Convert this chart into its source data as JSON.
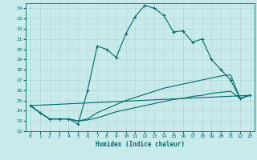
{
  "xlabel": "Humidex (Indice chaleur)",
  "bg_color": "#c8eaea",
  "grid_color": "#b0d8d8",
  "line_color": "#006868",
  "xlim": [
    -0.5,
    23.5
  ],
  "ylim": [
    22.0,
    34.5
  ],
  "yticks": [
    22,
    23,
    24,
    25,
    26,
    27,
    28,
    29,
    30,
    31,
    32,
    33,
    34
  ],
  "xticks": [
    0,
    1,
    2,
    3,
    4,
    5,
    6,
    7,
    8,
    9,
    10,
    11,
    12,
    13,
    14,
    15,
    16,
    17,
    18,
    19,
    20,
    21,
    22,
    23
  ],
  "series1": [
    [
      0,
      24.5
    ],
    [
      1,
      23.8
    ],
    [
      2,
      23.2
    ],
    [
      3,
      23.2
    ],
    [
      4,
      23.2
    ],
    [
      5,
      22.7
    ],
    [
      6,
      26.0
    ],
    [
      7,
      30.3
    ],
    [
      8,
      30.0
    ],
    [
      9,
      29.2
    ],
    [
      10,
      31.5
    ],
    [
      11,
      33.2
    ],
    [
      12,
      34.3
    ],
    [
      13,
      34.0
    ],
    [
      14,
      33.3
    ],
    [
      15,
      31.7
    ],
    [
      16,
      31.8
    ],
    [
      17,
      30.7
    ],
    [
      18,
      31.0
    ],
    [
      19,
      29.0
    ],
    [
      20,
      28.0
    ],
    [
      21,
      27.0
    ],
    [
      22,
      25.2
    ],
    [
      23,
      25.5
    ]
  ],
  "series2": [
    [
      0,
      24.5
    ],
    [
      23,
      25.5
    ]
  ],
  "series3": [
    [
      0,
      24.5
    ],
    [
      1,
      23.8
    ],
    [
      2,
      23.2
    ],
    [
      3,
      23.2
    ],
    [
      4,
      23.2
    ],
    [
      5,
      23.0
    ],
    [
      6,
      23.2
    ],
    [
      7,
      23.8
    ],
    [
      8,
      24.2
    ],
    [
      9,
      24.6
    ],
    [
      10,
      25.0
    ],
    [
      11,
      25.3
    ],
    [
      12,
      25.6
    ],
    [
      13,
      25.9
    ],
    [
      14,
      26.2
    ],
    [
      15,
      26.4
    ],
    [
      16,
      26.6
    ],
    [
      17,
      26.8
    ],
    [
      18,
      27.0
    ],
    [
      19,
      27.2
    ],
    [
      20,
      27.4
    ],
    [
      21,
      27.5
    ],
    [
      22,
      25.2
    ],
    [
      23,
      25.5
    ]
  ],
  "series4": [
    [
      0,
      24.5
    ],
    [
      1,
      23.8
    ],
    [
      2,
      23.2
    ],
    [
      3,
      23.2
    ],
    [
      4,
      23.2
    ],
    [
      5,
      23.0
    ],
    [
      6,
      23.1
    ],
    [
      7,
      23.3
    ],
    [
      8,
      23.6
    ],
    [
      9,
      23.9
    ],
    [
      10,
      24.1
    ],
    [
      11,
      24.3
    ],
    [
      12,
      24.5
    ],
    [
      13,
      24.7
    ],
    [
      14,
      24.9
    ],
    [
      15,
      25.1
    ],
    [
      16,
      25.2
    ],
    [
      17,
      25.4
    ],
    [
      18,
      25.5
    ],
    [
      19,
      25.7
    ],
    [
      20,
      25.8
    ],
    [
      21,
      25.9
    ],
    [
      22,
      25.2
    ],
    [
      23,
      25.5
    ]
  ]
}
